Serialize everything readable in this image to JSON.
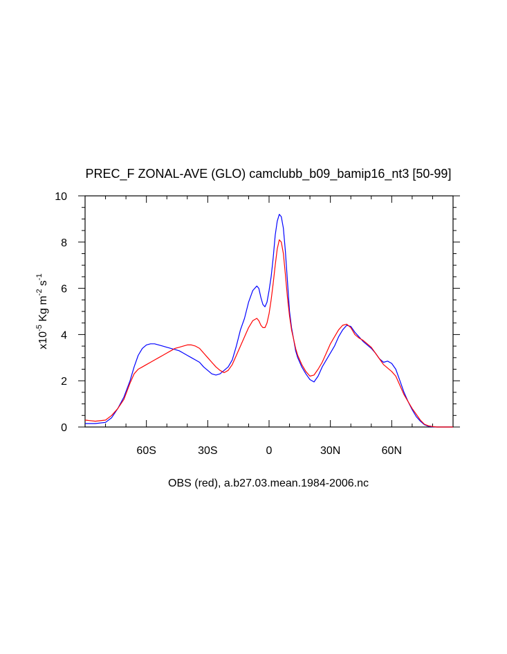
{
  "chart_data": {
    "type": "line",
    "title": "PREC_F ZONAL-AVE (GLO) camclubb_b09_bamip16_nt3 [50-99]",
    "xlabel": "OBS (red), a.b27.03.mean.1984-2006.nc",
    "ylabel": {
      "prefix": "x10",
      "exp1": "-5",
      "mid": " Kg m",
      "exp2": "-2",
      "mid2": " s",
      "exp3": "-1"
    },
    "xlim": [
      -90,
      90
    ],
    "ylim": [
      0,
      10
    ],
    "grid": false,
    "x_ticks": [
      {
        "value": -60,
        "label": "60S"
      },
      {
        "value": -30,
        "label": "30S"
      },
      {
        "value": 0,
        "label": "0"
      },
      {
        "value": 30,
        "label": "30N"
      },
      {
        "value": 60,
        "label": "60N"
      }
    ],
    "y_ticks": [
      {
        "value": 0,
        "label": "0"
      },
      {
        "value": 2,
        "label": "2"
      },
      {
        "value": 4,
        "label": "4"
      },
      {
        "value": 6,
        "label": "6"
      },
      {
        "value": 8,
        "label": "8"
      },
      {
        "value": 10,
        "label": "10"
      }
    ],
    "series": [
      {
        "color": "#0000ff",
        "x": [
          -90,
          -85,
          -80,
          -77,
          -74,
          -71,
          -68,
          -66,
          -64,
          -62,
          -60,
          -58,
          -56,
          -54,
          -52,
          -50,
          -48,
          -46,
          -44,
          -42,
          -40,
          -38,
          -36,
          -34,
          -32,
          -30,
          -28,
          -26,
          -24,
          -22,
          -20,
          -18,
          -16,
          -14,
          -12,
          -10,
          -8,
          -6,
          -5,
          -4,
          -3,
          -2,
          -1,
          0,
          1,
          2,
          3,
          4,
          5,
          6,
          7,
          8,
          9,
          10,
          11,
          12,
          13,
          14,
          16,
          18,
          20,
          22,
          24,
          26,
          28,
          30,
          32,
          34,
          36,
          38,
          40,
          42,
          44,
          46,
          48,
          50,
          52,
          54,
          56,
          58,
          60,
          62,
          64,
          66,
          68,
          70,
          72,
          74,
          76,
          78,
          80,
          82,
          84,
          86,
          88,
          90
        ],
        "y": [
          0.15,
          0.15,
          0.2,
          0.4,
          0.8,
          1.3,
          2.0,
          2.6,
          3.1,
          3.4,
          3.55,
          3.6,
          3.6,
          3.55,
          3.5,
          3.45,
          3.4,
          3.35,
          3.3,
          3.2,
          3.1,
          3.0,
          2.9,
          2.8,
          2.6,
          2.45,
          2.3,
          2.25,
          2.3,
          2.45,
          2.6,
          2.9,
          3.5,
          4.2,
          4.7,
          5.4,
          5.9,
          6.1,
          6.0,
          5.6,
          5.3,
          5.2,
          5.4,
          5.9,
          6.5,
          7.3,
          8.3,
          8.9,
          9.2,
          9.1,
          8.6,
          7.6,
          6.3,
          5.0,
          4.3,
          3.8,
          3.3,
          3.0,
          2.6,
          2.3,
          2.05,
          1.95,
          2.2,
          2.6,
          2.9,
          3.2,
          3.5,
          3.9,
          4.2,
          4.4,
          4.35,
          4.1,
          3.9,
          3.7,
          3.55,
          3.4,
          3.2,
          2.95,
          2.8,
          2.85,
          2.75,
          2.5,
          2.0,
          1.5,
          1.1,
          0.75,
          0.45,
          0.25,
          0.1,
          0.03,
          0.01,
          0.0,
          0.0,
          0.0,
          0.0,
          0.0
        ]
      },
      {
        "color": "#ff0000",
        "x": [
          -90,
          -85,
          -80,
          -77,
          -74,
          -71,
          -68,
          -66,
          -64,
          -62,
          -60,
          -58,
          -56,
          -54,
          -52,
          -50,
          -48,
          -46,
          -44,
          -42,
          -40,
          -38,
          -36,
          -34,
          -32,
          -30,
          -28,
          -26,
          -24,
          -22,
          -20,
          -18,
          -16,
          -14,
          -12,
          -10,
          -8,
          -6,
          -5,
          -4,
          -3,
          -2,
          -1,
          0,
          1,
          2,
          3,
          4,
          5,
          6,
          7,
          8,
          9,
          10,
          11,
          12,
          13,
          14,
          16,
          18,
          20,
          22,
          24,
          26,
          28,
          30,
          32,
          34,
          36,
          38,
          40,
          42,
          44,
          46,
          48,
          50,
          52,
          54,
          56,
          58,
          60,
          62,
          64,
          66,
          68,
          70,
          72,
          74,
          76,
          78,
          80,
          82,
          84,
          86,
          88,
          90
        ],
        "y": [
          0.3,
          0.25,
          0.3,
          0.5,
          0.8,
          1.2,
          1.9,
          2.3,
          2.5,
          2.6,
          2.7,
          2.8,
          2.9,
          3.0,
          3.1,
          3.2,
          3.3,
          3.4,
          3.45,
          3.5,
          3.55,
          3.55,
          3.5,
          3.4,
          3.2,
          3.0,
          2.8,
          2.6,
          2.45,
          2.35,
          2.45,
          2.7,
          3.1,
          3.5,
          3.9,
          4.3,
          4.6,
          4.7,
          4.6,
          4.4,
          4.3,
          4.3,
          4.5,
          4.9,
          5.5,
          6.2,
          7.0,
          7.7,
          8.1,
          8.0,
          7.5,
          6.6,
          5.6,
          4.8,
          4.2,
          3.8,
          3.4,
          3.1,
          2.7,
          2.4,
          2.2,
          2.25,
          2.5,
          2.8,
          3.2,
          3.6,
          3.9,
          4.2,
          4.4,
          4.45,
          4.3,
          4.0,
          3.85,
          3.75,
          3.6,
          3.45,
          3.2,
          2.95,
          2.7,
          2.55,
          2.4,
          2.2,
          1.8,
          1.4,
          1.1,
          0.8,
          0.55,
          0.3,
          0.12,
          0.05,
          0.02,
          0.0,
          0.0,
          0.0,
          0.0,
          0.0
        ]
      }
    ]
  }
}
